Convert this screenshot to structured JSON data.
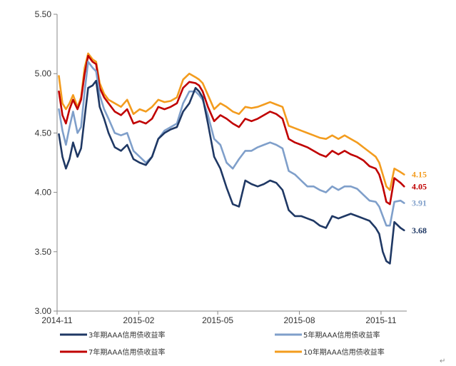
{
  "chart_data": {
    "type": "line",
    "title": "",
    "xlabel": "",
    "ylabel": "",
    "ylim": [
      3.0,
      5.5
    ],
    "yticks": [
      "5.50",
      "5.00",
      "4.50",
      "4.00",
      "3.50",
      "3.00"
    ],
    "ytick_values": [
      5.5,
      5.0,
      4.5,
      4.0,
      3.5,
      3.0
    ],
    "xlim": [
      "2014-11-01",
      "2015-11-30"
    ],
    "xticks": [
      {
        "label": "2014-11",
        "date": "2014-11-01"
      },
      {
        "label": "2015-02",
        "date": "2015-02-01"
      },
      {
        "label": "2015-05",
        "date": "2015-05-01"
      },
      {
        "label": "2015-08",
        "date": "2015-08-01"
      },
      {
        "label": "2015-11",
        "date": "2015-11-01"
      }
    ],
    "grid": false,
    "legend_position": "bottom",
    "x": [
      "2014-11-03",
      "2014-11-07",
      "2014-11-11",
      "2014-11-15",
      "2014-11-19",
      "2014-11-24",
      "2014-11-28",
      "2014-12-02",
      "2014-12-06",
      "2014-12-11",
      "2014-12-15",
      "2014-12-19",
      "2014-12-24",
      "2014-12-29",
      "2015-01-05",
      "2015-01-12",
      "2015-01-19",
      "2015-01-26",
      "2015-02-02",
      "2015-02-09",
      "2015-02-16",
      "2015-02-23",
      "2015-03-02",
      "2015-03-09",
      "2015-03-16",
      "2015-03-23",
      "2015-03-30",
      "2015-04-06",
      "2015-04-10",
      "2015-04-14",
      "2015-04-20",
      "2015-04-27",
      "2015-05-04",
      "2015-05-11",
      "2015-05-18",
      "2015-05-25",
      "2015-06-01",
      "2015-06-08",
      "2015-06-15",
      "2015-06-22",
      "2015-06-29",
      "2015-07-06",
      "2015-07-13",
      "2015-07-20",
      "2015-07-27",
      "2015-08-03",
      "2015-08-10",
      "2015-08-17",
      "2015-08-24",
      "2015-08-31",
      "2015-09-07",
      "2015-09-14",
      "2015-09-21",
      "2015-09-28",
      "2015-10-05",
      "2015-10-12",
      "2015-10-19",
      "2015-10-26",
      "2015-10-30",
      "2015-11-03",
      "2015-11-07",
      "2015-11-11",
      "2015-11-16",
      "2015-11-23",
      "2015-11-27"
    ],
    "series": [
      {
        "name": "3年期AAA信用债收益率",
        "color": "#1f3864",
        "end_label": "3.68",
        "values": [
          4.49,
          4.3,
          4.2,
          4.28,
          4.42,
          4.3,
          4.37,
          4.63,
          4.88,
          4.9,
          4.94,
          4.72,
          4.62,
          4.5,
          4.38,
          4.35,
          4.4,
          4.28,
          4.25,
          4.23,
          4.3,
          4.45,
          4.5,
          4.53,
          4.55,
          4.68,
          4.75,
          4.88,
          4.85,
          4.8,
          4.58,
          4.3,
          4.2,
          4.04,
          3.9,
          3.88,
          4.1,
          4.07,
          4.05,
          4.07,
          4.1,
          4.08,
          4.02,
          3.85,
          3.8,
          3.8,
          3.78,
          3.76,
          3.72,
          3.7,
          3.8,
          3.78,
          3.8,
          3.82,
          3.8,
          3.78,
          3.76,
          3.7,
          3.65,
          3.5,
          3.42,
          3.4,
          3.75,
          3.7,
          3.68
        ]
      },
      {
        "name": "5年期AAA信用债收益率",
        "color": "#7f9fca",
        "end_label": "3.91",
        "values": [
          4.7,
          4.52,
          4.4,
          4.55,
          4.68,
          4.5,
          4.55,
          4.85,
          5.1,
          5.05,
          5.02,
          4.82,
          4.7,
          4.62,
          4.5,
          4.48,
          4.5,
          4.35,
          4.3,
          4.25,
          4.3,
          4.45,
          4.52,
          4.55,
          4.58,
          4.75,
          4.85,
          4.85,
          4.82,
          4.78,
          4.65,
          4.45,
          4.4,
          4.25,
          4.2,
          4.28,
          4.35,
          4.35,
          4.38,
          4.4,
          4.42,
          4.4,
          4.37,
          4.18,
          4.15,
          4.1,
          4.05,
          4.05,
          4.02,
          4.0,
          4.05,
          4.02,
          4.05,
          4.05,
          4.03,
          3.98,
          3.93,
          3.92,
          3.88,
          3.8,
          3.72,
          3.72,
          3.92,
          3.93,
          3.91
        ]
      },
      {
        "name": "7年期AAA信用债收益率",
        "color": "#c00000",
        "end_label": "4.05",
        "values": [
          4.85,
          4.65,
          4.58,
          4.7,
          4.78,
          4.7,
          4.78,
          5.0,
          5.15,
          5.1,
          5.08,
          4.88,
          4.8,
          4.75,
          4.68,
          4.65,
          4.7,
          4.58,
          4.6,
          4.58,
          4.62,
          4.72,
          4.7,
          4.72,
          4.75,
          4.88,
          4.93,
          4.92,
          4.9,
          4.85,
          4.72,
          4.6,
          4.65,
          4.62,
          4.58,
          4.55,
          4.62,
          4.6,
          4.62,
          4.65,
          4.68,
          4.66,
          4.62,
          4.45,
          4.42,
          4.4,
          4.38,
          4.35,
          4.32,
          4.3,
          4.35,
          4.32,
          4.35,
          4.32,
          4.3,
          4.27,
          4.22,
          4.2,
          4.15,
          4.05,
          3.92,
          3.9,
          4.12,
          4.08,
          4.05
        ]
      },
      {
        "name": "10年期AAA信用债收益率",
        "color": "#f39c1e",
        "end_label": "4.15",
        "values": [
          4.98,
          4.75,
          4.7,
          4.75,
          4.82,
          4.72,
          4.8,
          5.05,
          5.17,
          5.12,
          5.1,
          4.92,
          4.83,
          4.78,
          4.75,
          4.72,
          4.78,
          4.66,
          4.7,
          4.68,
          4.72,
          4.78,
          4.76,
          4.77,
          4.8,
          4.95,
          5.0,
          4.97,
          4.95,
          4.92,
          4.82,
          4.7,
          4.75,
          4.72,
          4.68,
          4.66,
          4.72,
          4.71,
          4.72,
          4.74,
          4.76,
          4.74,
          4.72,
          4.56,
          4.54,
          4.52,
          4.5,
          4.48,
          4.46,
          4.45,
          4.48,
          4.45,
          4.48,
          4.45,
          4.42,
          4.38,
          4.34,
          4.3,
          4.25,
          4.15,
          4.05,
          4.02,
          4.2,
          4.17,
          4.15
        ]
      }
    ]
  },
  "corner_mark": "↵"
}
